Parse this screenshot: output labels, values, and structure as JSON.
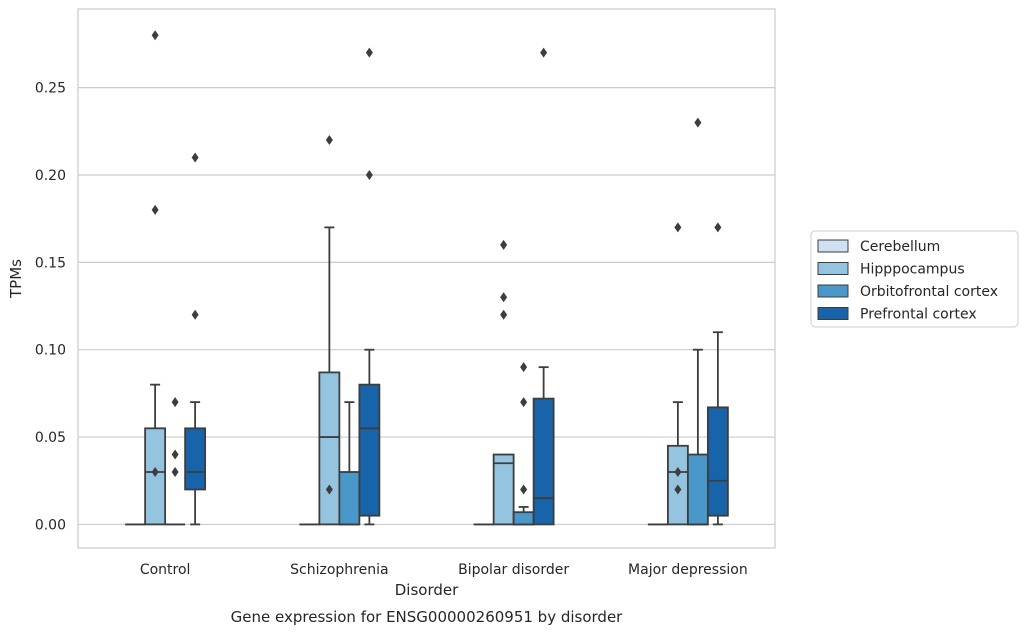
{
  "chart_data": {
    "type": "box",
    "xlabel": "Disorder",
    "ylabel": "TPMs",
    "caption": "Gene expression for ENSG00000260951 by disorder",
    "ylim": [
      -0.0135,
      0.295
    ],
    "yticks": [
      "0.00",
      "0.05",
      "0.10",
      "0.15",
      "0.20",
      "0.25"
    ],
    "grid": true,
    "legend_position": "right",
    "categories": [
      "Control",
      "Schizophrenia",
      "Bipolar disorder",
      "Major depression"
    ],
    "series": [
      {
        "name": "Cerebellum",
        "color": "#d0e1f2",
        "boxes": [
          {
            "q1": 0,
            "median": 0,
            "q3": 0,
            "whislo": 0,
            "whishi": 0,
            "fliers": []
          },
          {
            "q1": 0,
            "median": 0,
            "q3": 0,
            "whislo": 0,
            "whishi": 0,
            "fliers": []
          },
          {
            "q1": 0,
            "median": 0,
            "q3": 0,
            "whislo": 0,
            "whishi": 0,
            "fliers": []
          },
          {
            "q1": 0,
            "median": 0,
            "q3": 0,
            "whislo": 0,
            "whishi": 0,
            "fliers": []
          }
        ]
      },
      {
        "name": "Hipppocampus",
        "color": "#94c4df",
        "boxes": [
          {
            "q1": 0,
            "median": 0.03,
            "q3": 0.055,
            "whislo": 0,
            "whishi": 0.08,
            "fliers": [
              0.28,
              0.18,
              0.03
            ]
          },
          {
            "q1": 0,
            "median": 0.05,
            "q3": 0.087,
            "whislo": 0,
            "whishi": 0.17,
            "fliers": [
              0.22,
              0.02
            ]
          },
          {
            "q1": 0,
            "median": 0.035,
            "q3": 0.04,
            "whislo": 0,
            "whishi": 0.04,
            "fliers": [
              0.16,
              0.13,
              0.12
            ]
          },
          {
            "q1": 0,
            "median": 0.03,
            "q3": 0.045,
            "whislo": 0,
            "whishi": 0.07,
            "fliers": [
              0.17,
              0.03,
              0.02
            ]
          }
        ]
      },
      {
        "name": "Orbitofrontal cortex",
        "color": "#4a98c9",
        "boxes": [
          {
            "q1": 0,
            "median": 0,
            "q3": 0,
            "whislo": 0,
            "whishi": 0,
            "fliers": [
              0.07,
              0.04,
              0.03
            ]
          },
          {
            "q1": 0,
            "median": 0,
            "q3": 0.03,
            "whislo": 0,
            "whishi": 0.07,
            "fliers": []
          },
          {
            "q1": 0,
            "median": 0,
            "q3": 0.007,
            "whislo": 0,
            "whishi": 0.01,
            "fliers": [
              0.09,
              0.07,
              0.02
            ]
          },
          {
            "q1": 0,
            "median": 0,
            "q3": 0.04,
            "whislo": 0,
            "whishi": 0.1,
            "fliers": [
              0.23
            ]
          }
        ]
      },
      {
        "name": "Prefrontal cortex",
        "color": "#1764ab",
        "boxes": [
          {
            "q1": 0.02,
            "median": 0.03,
            "q3": 0.055,
            "whislo": 0,
            "whishi": 0.07,
            "fliers": [
              0.21,
              0.12
            ]
          },
          {
            "q1": 0.005,
            "median": 0.055,
            "q3": 0.08,
            "whislo": 0,
            "whishi": 0.1,
            "fliers": [
              0.27,
              0.2
            ]
          },
          {
            "q1": 0,
            "median": 0.015,
            "q3": 0.072,
            "whislo": 0,
            "whishi": 0.09,
            "fliers": [
              0.27
            ]
          },
          {
            "q1": 0.005,
            "median": 0.025,
            "q3": 0.067,
            "whislo": 0,
            "whishi": 0.11,
            "fliers": [
              0.17
            ]
          }
        ]
      }
    ]
  }
}
